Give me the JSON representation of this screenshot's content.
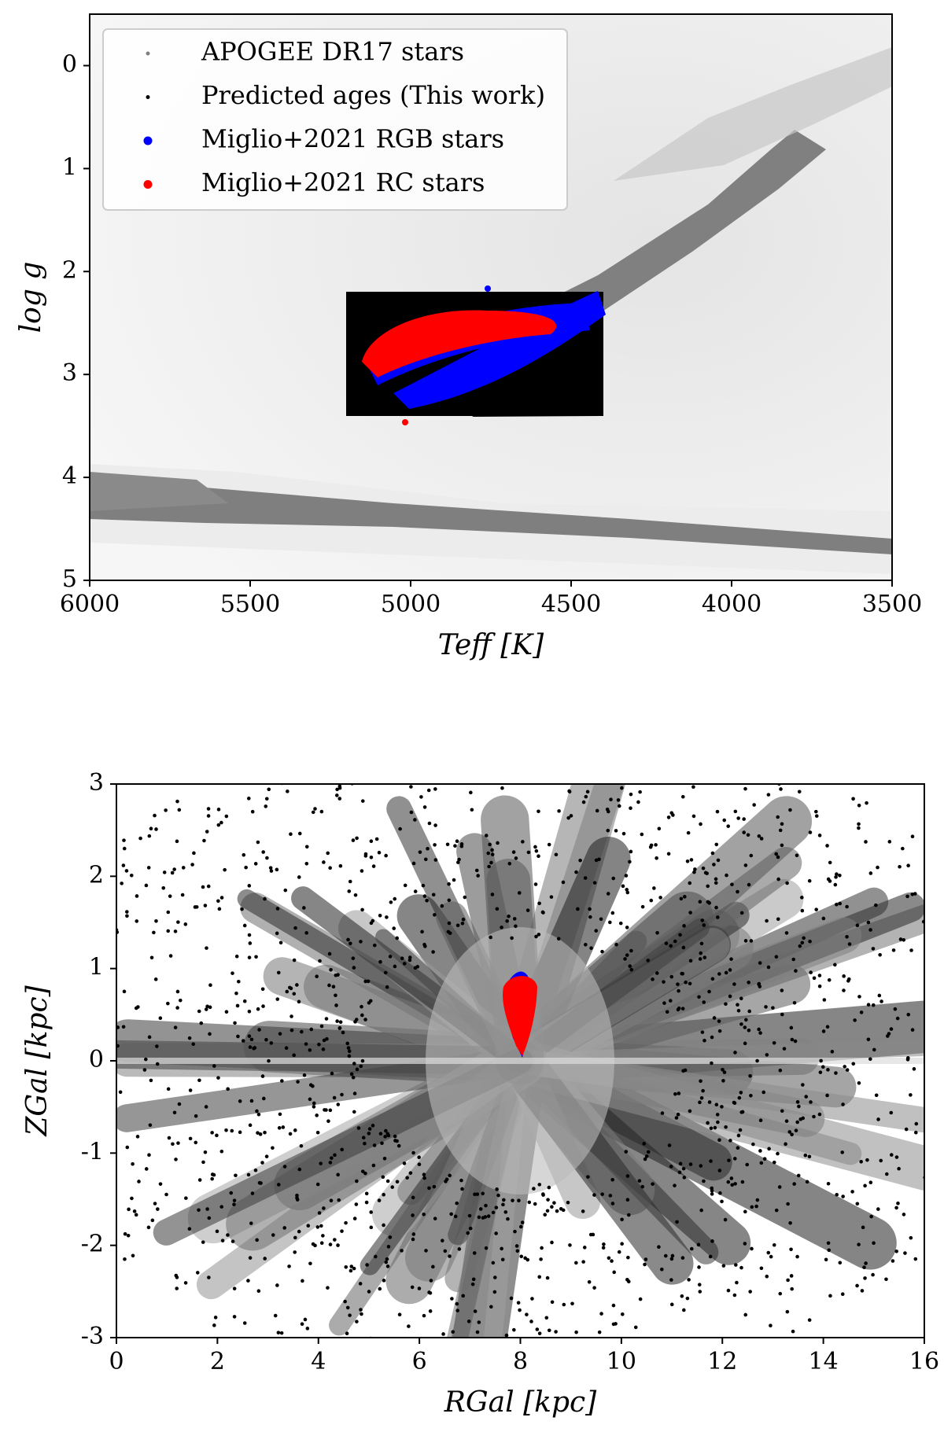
{
  "chart_data": [
    {
      "type": "scatter",
      "x_label": "Teff [K]",
      "y_label": "log g",
      "xlim": [
        6000,
        3500
      ],
      "xticks": [
        6000,
        5500,
        5000,
        4500,
        4000,
        3500
      ],
      "ylim": [
        5,
        -0.5
      ],
      "yticks": [
        0,
        1,
        2,
        3,
        4,
        5
      ],
      "legend": "upper left",
      "series": [
        {
          "name": "APOGEE DR17 stars",
          "color": "#808080"
        },
        {
          "name": "Predicted ages (This work)",
          "color": "#000000"
        },
        {
          "name": "Miglio+2021 RGB stars",
          "color": "#0000ff"
        },
        {
          "name": "Miglio+2021 RC stars",
          "color": "#ff0000"
        }
      ]
    },
    {
      "type": "scatter",
      "x_label": "RGal [kpc]",
      "y_label": "ZGal [kpc]",
      "xlim": [
        0,
        16
      ],
      "xticks": [
        0,
        2,
        4,
        6,
        8,
        10,
        12,
        14,
        16
      ],
      "ylim": [
        -3,
        3
      ],
      "yticks": [
        -3,
        -2,
        -1,
        0,
        1,
        2,
        3
      ]
    }
  ]
}
